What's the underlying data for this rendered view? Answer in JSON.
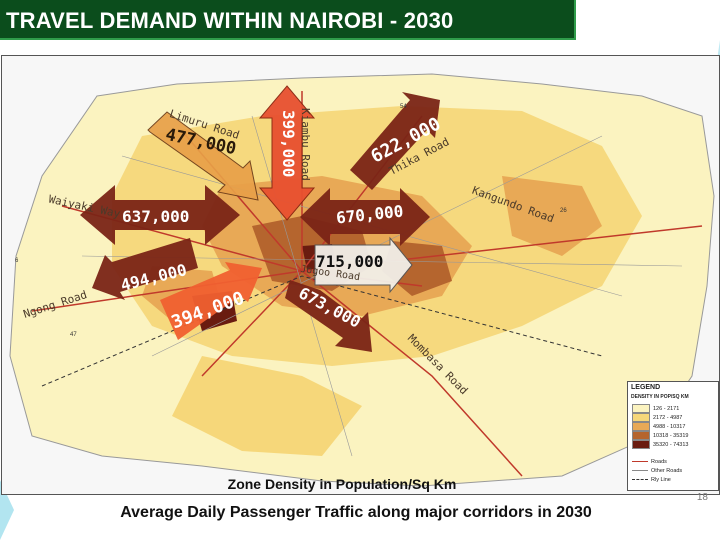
{
  "title": "TRAVEL DEMAND WITHIN NAIROBI - 2030",
  "caption": "Average Daily Passenger Traffic along major corridors in 2030",
  "map_caption": "Zone Density in Population/Sq Km",
  "slide_number": "18",
  "roads": {
    "limuru": "Limuru Road",
    "kiambu": "Kiambu Road",
    "thika": "Thika Road",
    "waiyaki": "Waiyaki Way",
    "kangundo": "Kangundo Road",
    "jogoo": "Jogoo Road",
    "ngong": "Ngong Road",
    "mombasa": "Mombasa Road"
  },
  "flows": {
    "limuru": "477,000",
    "kiambu": "399,000",
    "thika": "622,000",
    "waiyaki": "637,000",
    "kangundo": "670,000",
    "jogoo": "715,000",
    "ngong": "494,000",
    "langata": "394,000",
    "mombasa": "673,000"
  },
  "legend": {
    "title": "LEGEND",
    "subtitle": "DENSITY IN POP/SQ KM",
    "bins": [
      {
        "label": "126 - 2171",
        "color": "#fbf3c0"
      },
      {
        "label": "2172 - 4987",
        "color": "#f6d77a"
      },
      {
        "label": "4988 - 10317",
        "color": "#e8a956"
      },
      {
        "label": "10318 - 35319",
        "color": "#b5652e"
      },
      {
        "label": "35320 - 74313",
        "color": "#6a1c10"
      }
    ],
    "lines": [
      {
        "label": "Roads",
        "color": "#c0392b",
        "style": "solid"
      },
      {
        "label": "Other Roads",
        "color": "#888888",
        "style": "solid"
      },
      {
        "label": "Rly Line",
        "color": "#333333",
        "style": "dashed"
      }
    ]
  }
}
